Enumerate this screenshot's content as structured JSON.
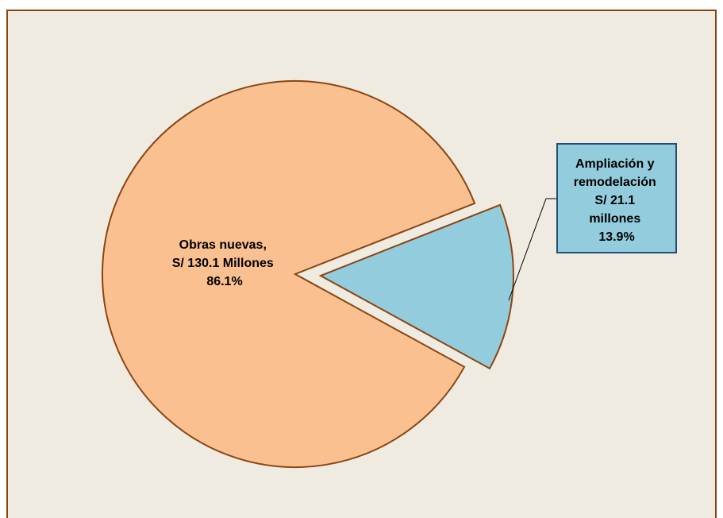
{
  "chart_data": {
    "type": "pie",
    "exploded": true,
    "slices": [
      {
        "name": "Obras nuevas,",
        "value": 130.1,
        "percent": 86.1,
        "label_lines": [
          "Obras nuevas,",
          "S/  130.1 Millones",
          "86.1%"
        ],
        "color": "#fac090"
      },
      {
        "name": "Ampliación y remodelación",
        "value": 21.1,
        "percent": 13.9,
        "label_lines": [
          "Ampliación y",
          "remodelación",
          "S/ 21.1",
          "millones",
          "13.9%"
        ],
        "color": "#93cddd"
      }
    ]
  },
  "colors": {
    "background": "#efebe1",
    "frame_border": "#8b4513",
    "slice_border": "#8b4513",
    "callout_fill": "#93cddd",
    "callout_border": "#1f4e79"
  }
}
